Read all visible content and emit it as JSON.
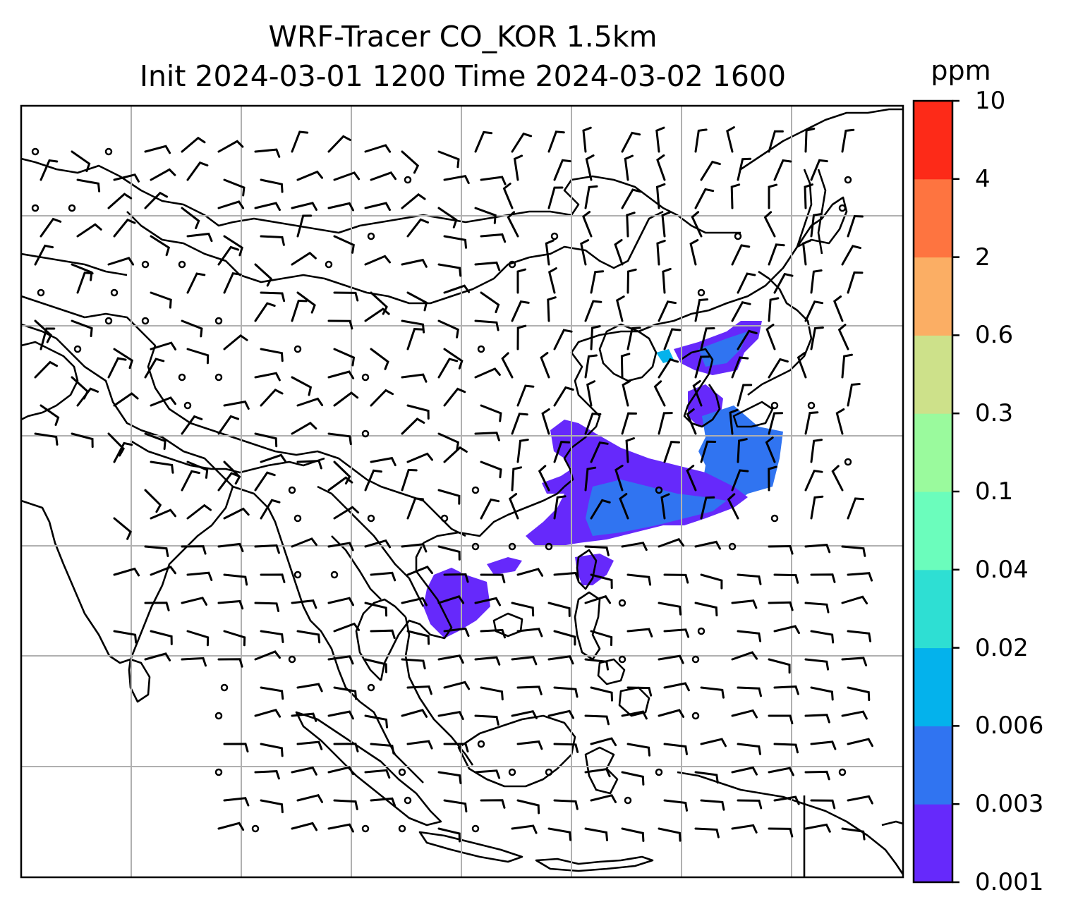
{
  "title": {
    "line1": "WRF-Tracer CO_KOR 1.5km",
    "line2": "Init 2024-03-01 1200 Time 2024-03-02 1600"
  },
  "colorbar": {
    "unit": "ppm",
    "levels": [
      "0.001",
      "0.003",
      "0.006",
      "0.02",
      "0.04",
      "0.1",
      "0.3",
      "0.6",
      "2",
      "4",
      "10"
    ],
    "colors": [
      "#6629fb",
      "#3074f1",
      "#04b2ec",
      "#2edfd3",
      "#6bfdbc",
      "#9afa9d",
      "#cde18a",
      "#fbae64",
      "#fe7440",
      "#fd2a18"
    ]
  },
  "map": {
    "gridlines": true,
    "tracer_color_low": "#6629fb",
    "tracer_color_mid": "#3074f1",
    "tracer_color_edge": "#04b2ec",
    "wind_barbs": "black barbs with calm circles",
    "coastlines": "black"
  }
}
